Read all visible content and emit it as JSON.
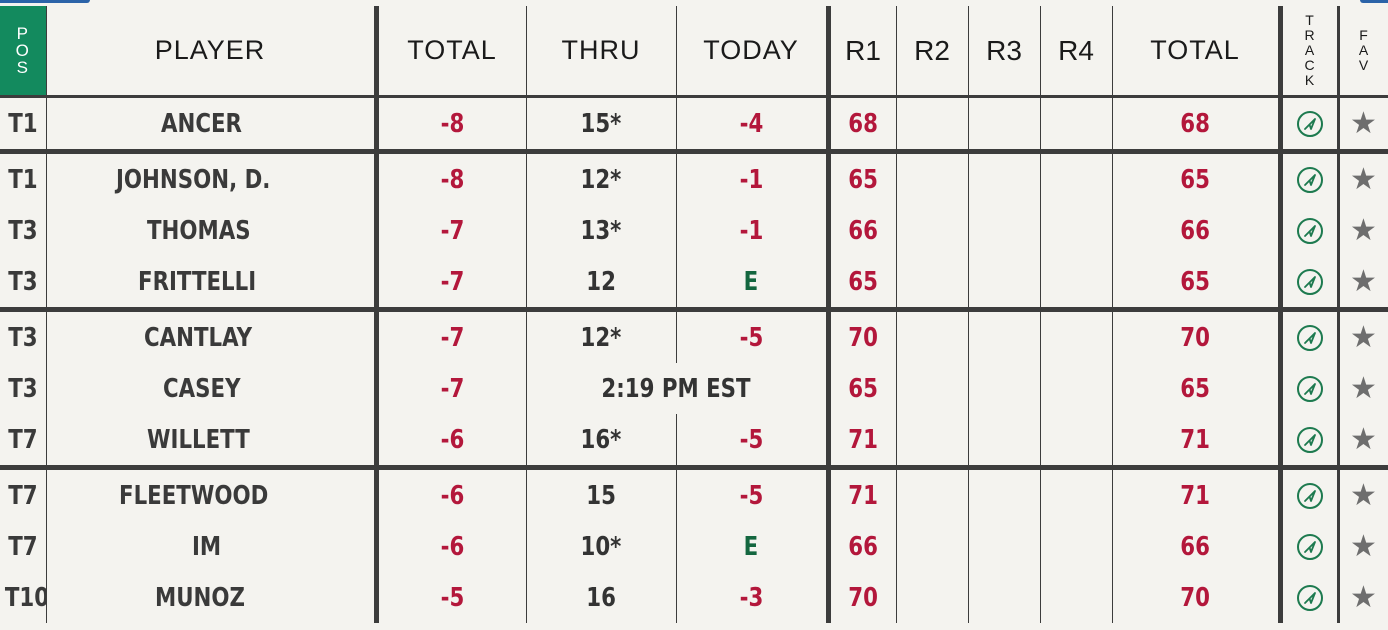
{
  "header": {
    "pos": [
      "P",
      "O",
      "S"
    ],
    "player": "PLAYER",
    "total": "TOTAL",
    "thru": "THRU",
    "today": "TODAY",
    "r1": "R1",
    "r2": "R2",
    "r3": "R3",
    "r4": "R4",
    "total2": "TOTAL",
    "track": [
      "T",
      "R",
      "A",
      "C",
      "K"
    ],
    "fav": [
      "F",
      "A",
      "V"
    ]
  },
  "colors": {
    "pos_header_bg": "#138a5e",
    "under_par": "#b3173b",
    "even_par": "#13663f",
    "track_icon": "#1d7a4f",
    "star": "#6e6e6e"
  },
  "icons": {
    "track": "compass-icon",
    "fav": "star-icon"
  },
  "rows": [
    {
      "pos": "T1",
      "player": "ANCER",
      "total": "-8",
      "thru": "15*",
      "today": "-4",
      "today_color": "red",
      "r1": "68",
      "r2": "",
      "r3": "",
      "r4": "",
      "total2": "68",
      "group_end": true
    },
    {
      "pos": "T1",
      "player": "JOHNSON, D.",
      "total": "-8",
      "thru": "12*",
      "today": "-1",
      "today_color": "red",
      "r1": "65",
      "r2": "",
      "r3": "",
      "r4": "",
      "total2": "65",
      "group_end": false
    },
    {
      "pos": "T3",
      "player": "THOMAS",
      "total": "-7",
      "thru": "13*",
      "today": "-1",
      "today_color": "red",
      "r1": "66",
      "r2": "",
      "r3": "",
      "r4": "",
      "total2": "66",
      "group_end": false
    },
    {
      "pos": "T3",
      "player": "FRITTELLI",
      "total": "-7",
      "thru": "12",
      "today": "E",
      "today_color": "green",
      "r1": "65",
      "r2": "",
      "r3": "",
      "r4": "",
      "total2": "65",
      "group_end": true
    },
    {
      "pos": "T3",
      "player": "CANTLAY",
      "total": "-7",
      "thru": "12*",
      "today": "-5",
      "today_color": "red",
      "r1": "70",
      "r2": "",
      "r3": "",
      "r4": "",
      "total2": "70",
      "group_end": false
    },
    {
      "pos": "T3",
      "player": "CASEY",
      "total": "-7",
      "thru": "2:19 PM EST",
      "today": "",
      "today_color": "red",
      "r1": "65",
      "r2": "",
      "r3": "",
      "r4": "",
      "total2": "65",
      "group_end": false,
      "tee_time": true
    },
    {
      "pos": "T7",
      "player": "WILLETT",
      "total": "-6",
      "thru": "16*",
      "today": "-5",
      "today_color": "red",
      "r1": "71",
      "r2": "",
      "r3": "",
      "r4": "",
      "total2": "71",
      "group_end": true
    },
    {
      "pos": "T7",
      "player": "FLEETWOOD",
      "total": "-6",
      "thru": "15",
      "today": "-5",
      "today_color": "red",
      "r1": "71",
      "r2": "",
      "r3": "",
      "r4": "",
      "total2": "71",
      "group_end": false
    },
    {
      "pos": "T7",
      "player": "IM",
      "total": "-6",
      "thru": "10*",
      "today": "E",
      "today_color": "green",
      "r1": "66",
      "r2": "",
      "r3": "",
      "r4": "",
      "total2": "66",
      "group_end": false
    },
    {
      "pos": "T10",
      "player": "MUNOZ",
      "total": "-5",
      "thru": "16",
      "today": "-3",
      "today_color": "red",
      "r1": "70",
      "r2": "",
      "r3": "",
      "r4": "",
      "total2": "70",
      "group_end": false
    }
  ]
}
